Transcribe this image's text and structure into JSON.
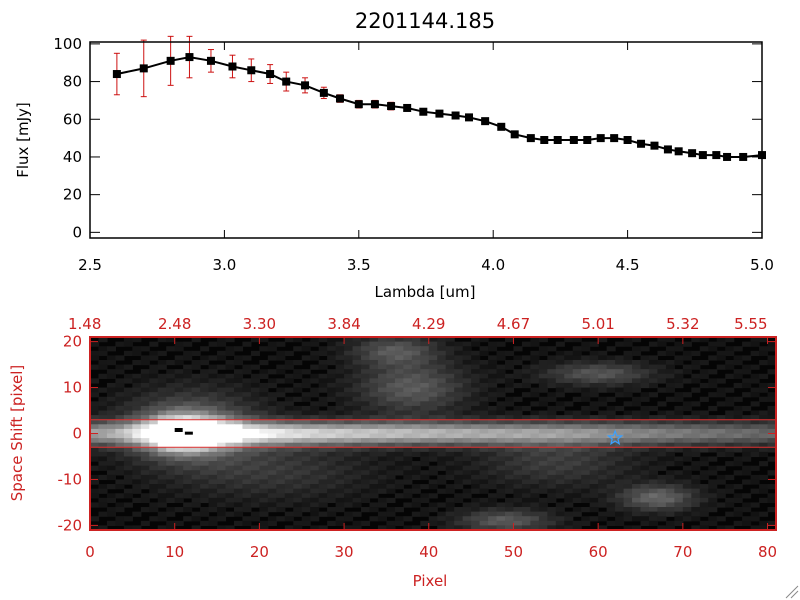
{
  "colors": {
    "axis_red": "#cc2222",
    "errorbar": "#cc1111",
    "line": "#000000",
    "star": "#3aa0ff",
    "aperture": "#e03030"
  },
  "chart_data": [
    {
      "type": "line",
      "title": "2201144.185",
      "xlabel": "Lambda [um]",
      "ylabel": "Flux [mJy]",
      "xlim": [
        2.5,
        5.0
      ],
      "ylim": [
        -3,
        101
      ],
      "grid": false,
      "x_ticks": [
        "2.5",
        "3.0",
        "3.5",
        "4.0",
        "4.5",
        "5.0"
      ],
      "y_ticks": [
        "0",
        "20",
        "40",
        "60",
        "80",
        "100"
      ],
      "series": [
        {
          "x": [
            2.6,
            2.7,
            2.8,
            2.87,
            2.95,
            3.03,
            3.1,
            3.17,
            3.23,
            3.3,
            3.37,
            3.43,
            3.5,
            3.56,
            3.62,
            3.68,
            3.74,
            3.8,
            3.86,
            3.91,
            3.97,
            4.03,
            4.08,
            4.14,
            4.19,
            4.24,
            4.3,
            4.35,
            4.4,
            4.45,
            4.5,
            4.55,
            4.6,
            4.65,
            4.69,
            4.74,
            4.78,
            4.83,
            4.87,
            4.93,
            5.0
          ],
          "y": [
            84,
            87,
            91,
            93,
            91,
            88,
            86,
            84,
            80,
            78,
            74,
            71,
            68,
            68,
            67,
            66,
            64,
            63,
            62,
            61,
            59,
            56,
            52,
            50,
            49,
            49,
            49,
            49,
            50,
            50,
            49,
            47,
            46,
            44,
            43,
            42,
            41,
            41,
            40,
            40,
            41
          ],
          "yerr": [
            11,
            15,
            13,
            11,
            6,
            6,
            6,
            5,
            5,
            4,
            3,
            2,
            2,
            2,
            2,
            1,
            1,
            1,
            1,
            1,
            1,
            1,
            1,
            1,
            1,
            1,
            1,
            1,
            1,
            1,
            1,
            1,
            1,
            1,
            1,
            1,
            1,
            1,
            1,
            1,
            1
          ]
        }
      ]
    },
    {
      "type": "heatmap",
      "xlabel": "Pixel",
      "ylabel": "Space Shift [pixel]",
      "xlim": [
        0,
        81
      ],
      "ylim": [
        -21,
        21
      ],
      "x_ticks": [
        "0",
        "10",
        "20",
        "30",
        "40",
        "50",
        "60",
        "70",
        "80"
      ],
      "y_ticks": [
        "-20",
        "-10",
        "0",
        "10",
        "20"
      ],
      "top_ticks": [
        "1.48",
        "2.48",
        "3.30",
        "3.84",
        "4.29",
        "4.67",
        "5.01",
        "5.32",
        "5.55"
      ],
      "aperture_lines_y": [
        3,
        -3
      ],
      "source_marker": {
        "pixel": 62,
        "shift": -1,
        "symbol": "star"
      }
    }
  ]
}
